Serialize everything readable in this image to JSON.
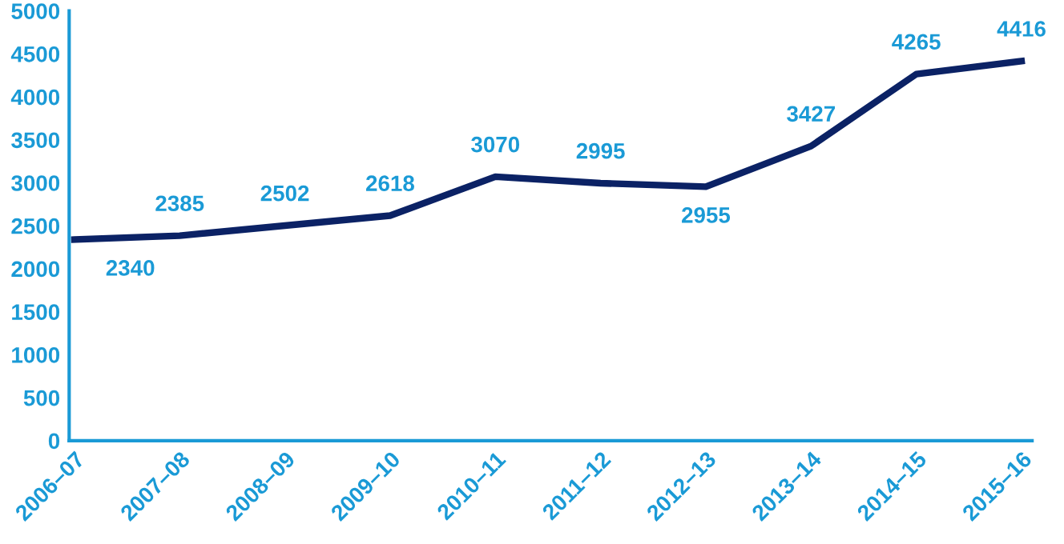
{
  "chart_data": {
    "type": "line",
    "categories": [
      "2006–07",
      "2007–08",
      "2008–09",
      "2009–10",
      "2010–11",
      "2011–12",
      "2012–13",
      "2013–14",
      "2014–15",
      "2015–16"
    ],
    "series": [
      {
        "color": "#0b2265",
        "values": [
          2340,
          2385,
          2502,
          2618,
          3070,
          2995,
          2955,
          3427,
          4265,
          4416
        ]
      }
    ],
    "ylim": [
      0,
      5000
    ],
    "yticks": [
      0,
      500,
      1000,
      1500,
      2000,
      2500,
      3000,
      3500,
      4000,
      4500,
      5000
    ],
    "data_labels": true,
    "grid": false,
    "marker": "none",
    "line_style": "solid"
  }
}
